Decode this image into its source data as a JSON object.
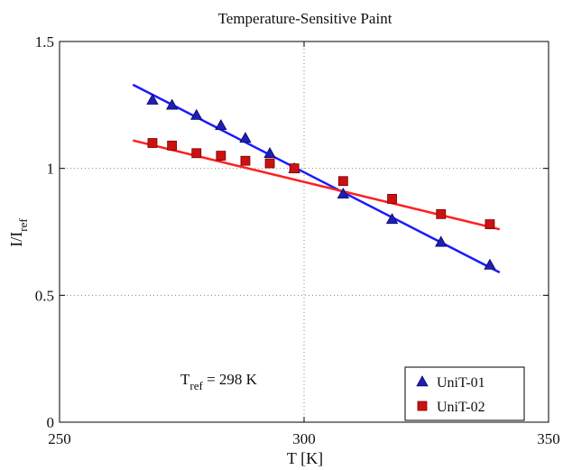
{
  "chart_data": {
    "type": "scatter",
    "title": "Temperature-Sensitive Paint",
    "xlabel": "T [K]",
    "ylabel": "I/I_ref",
    "ylabel_main": "I/I",
    "ylabel_sub": "ref",
    "xlim": [
      250,
      350
    ],
    "ylim": [
      0,
      1.5
    ],
    "xticks": [
      "250",
      "300",
      "350"
    ],
    "yticks": [
      "0",
      "0.5",
      "1",
      "1.5"
    ],
    "grid": "dotted",
    "annotation": {
      "text_main": "T",
      "text_sub": "ref",
      "text_rest": " = 298 K"
    },
    "legend_position": "bottom-right",
    "series": [
      {
        "name": "UniT-01",
        "marker": "triangle",
        "marker_color": "#1f1fb4",
        "line_color": "#1a1aff",
        "x": [
          269,
          273,
          278,
          283,
          288,
          293,
          298,
          308,
          318,
          328,
          338
        ],
        "y": [
          1.27,
          1.25,
          1.21,
          1.17,
          1.12,
          1.06,
          1.0,
          0.9,
          0.8,
          0.71,
          0.62
        ],
        "fit_x": [
          265,
          340
        ],
        "fit_y": [
          1.33,
          0.59
        ]
      },
      {
        "name": "UniT-02",
        "marker": "square",
        "marker_color": "#cc1111",
        "line_color": "#ff2020",
        "x": [
          269,
          273,
          278,
          283,
          288,
          293,
          298,
          308,
          318,
          328,
          338
        ],
        "y": [
          1.1,
          1.09,
          1.06,
          1.05,
          1.03,
          1.02,
          1.0,
          0.95,
          0.88,
          0.82,
          0.78
        ],
        "fit_x": [
          265,
          340
        ],
        "fit_y": [
          1.11,
          0.76
        ]
      }
    ]
  }
}
